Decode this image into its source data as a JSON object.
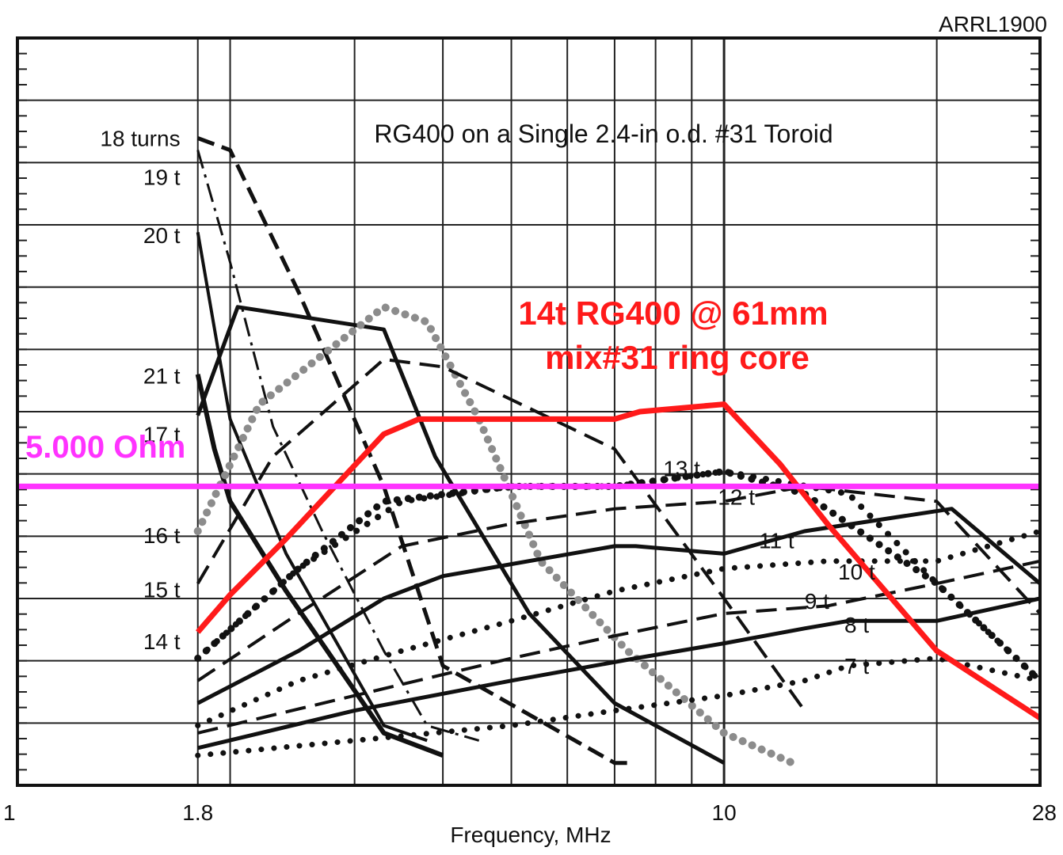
{
  "chart_data": {
    "type": "line",
    "title": "RG400 on a Single 2.4-in o.d. #31 Toroid",
    "corner_label": "ARRL1900",
    "xlabel": "Frequency, MHz",
    "ylabel": "",
    "x_scale": "log",
    "xlim": [
      1,
      28
    ],
    "x_ticks": [
      {
        "value": 1,
        "label": "1"
      },
      {
        "value": 1.8,
        "label": "1.8"
      },
      {
        "value": 10,
        "label": "10"
      },
      {
        "value": 28,
        "label": "28"
      }
    ],
    "y_scale": "log",
    "y_range_note": "y axis unlabelled in original; values below are in relative log-decade units (0 = bottom of plot, 1 = top)",
    "ylim": [
      0,
      1
    ],
    "grid": true,
    "series": [
      {
        "name": "18 turns",
        "style": "dashed-heavy",
        "color": "#111111",
        "width": 5,
        "x": [
          1.8,
          2.0,
          2.5,
          3.3,
          4.0,
          7.0,
          7.3
        ],
        "y": [
          0.866,
          0.85,
          0.66,
          0.4,
          0.16,
          0.03,
          0.03
        ]
      },
      {
        "name": "19 t",
        "style": "dashdot",
        "color": "#111111",
        "width": 3,
        "x": [
          1.8,
          2.0,
          2.3,
          2.7,
          3.3,
          3.8,
          4.5
        ],
        "y": [
          0.85,
          0.7,
          0.48,
          0.34,
          0.18,
          0.08,
          0.06
        ]
      },
      {
        "name": "20 t",
        "style": "solid",
        "color": "#111111",
        "width": 4,
        "x": [
          1.8,
          2.0,
          2.4,
          3.3,
          3.8
        ],
        "y": [
          0.74,
          0.49,
          0.31,
          0.08,
          0.06
        ]
      },
      {
        "name": "21 t",
        "style": "solid",
        "color": "#111111",
        "width": 6,
        "x": [
          1.8,
          1.9,
          2.0,
          2.4,
          3.3,
          4.0
        ],
        "y": [
          0.55,
          0.45,
          0.38,
          0.26,
          0.07,
          0.04
        ]
      },
      {
        "name": "17 t",
        "style": "solid",
        "color": "#111111",
        "width": 5,
        "x": [
          1.8,
          2.05,
          3.3,
          3.9,
          5.3,
          7.0,
          10.0
        ],
        "y": [
          0.495,
          0.64,
          0.61,
          0.44,
          0.23,
          0.11,
          0.03
        ]
      },
      {
        "name": "16 t",
        "style": "dotted-gray",
        "color": "#8c8c8c",
        "width": 10,
        "x": [
          1.8,
          2.2,
          3.3,
          3.8,
          4.5,
          5.5,
          7.3,
          10.0,
          12.5
        ],
        "y": [
          0.34,
          0.51,
          0.64,
          0.62,
          0.49,
          0.3,
          0.18,
          0.07,
          0.03
        ]
      },
      {
        "name": "15 t",
        "style": "dashed",
        "color": "#111111",
        "width": 4,
        "x": [
          1.8,
          2.3,
          3.3,
          4.0,
          7.0,
          10.0,
          13.0
        ],
        "y": [
          0.27,
          0.44,
          0.57,
          0.56,
          0.45,
          0.25,
          0.1
        ]
      },
      {
        "name": "14 t",
        "style": "dotted",
        "color": "#111111",
        "width": 8,
        "x": [
          1.8,
          2.5,
          3.5,
          5.0,
          7.0,
          10.0,
          15.0,
          20.0,
          28.0
        ],
        "y": [
          0.17,
          0.29,
          0.38,
          0.4,
          0.4,
          0.42,
          0.39,
          0.27,
          0.14
        ]
      },
      {
        "name": "13 t",
        "style": "dotted-heavy",
        "color": "#111111",
        "width": 9,
        "x": [
          1.8,
          2.5,
          3.3,
          5.0,
          7.0,
          10.0,
          13.0,
          20.0,
          28.0
        ],
        "y": [
          0.17,
          0.29,
          0.38,
          0.4,
          0.4,
          0.42,
          0.39,
          0.27,
          0.14
        ]
      },
      {
        "name": "12 t",
        "style": "dashed",
        "color": "#111111",
        "width": 4,
        "x": [
          1.8,
          2.5,
          3.5,
          5.0,
          7.0,
          10.0,
          13.0,
          20.0,
          28.0
        ],
        "y": [
          0.14,
          0.23,
          0.32,
          0.35,
          0.37,
          0.38,
          0.4,
          0.38,
          0.23
        ]
      },
      {
        "name": "11 t",
        "style": "solid",
        "color": "#111111",
        "width": 5,
        "x": [
          1.8,
          2.5,
          3.3,
          4.0,
          7.0,
          7.5,
          10.0,
          13.0,
          21.0,
          28.0
        ],
        "y": [
          0.11,
          0.18,
          0.25,
          0.28,
          0.32,
          0.32,
          0.31,
          0.34,
          0.37,
          0.27
        ]
      },
      {
        "name": "10 t",
        "style": "dotted",
        "color": "#111111",
        "width": 7,
        "x": [
          1.8,
          2.5,
          3.5,
          5.0,
          7.0,
          10.0,
          14.0,
          20.0,
          28.0
        ],
        "y": [
          0.08,
          0.14,
          0.18,
          0.22,
          0.26,
          0.29,
          0.3,
          0.3,
          0.34
        ]
      },
      {
        "name": "9 t",
        "style": "dashed",
        "color": "#111111",
        "width": 4,
        "x": [
          1.8,
          3.0,
          5.0,
          7.0,
          10.0,
          14.0,
          20.0,
          28.0
        ],
        "y": [
          0.07,
          0.12,
          0.17,
          0.2,
          0.23,
          0.24,
          0.27,
          0.3
        ]
      },
      {
        "name": "8 t",
        "style": "solid",
        "color": "#111111",
        "width": 5,
        "x": [
          1.8,
          3.0,
          5.0,
          7.5,
          10.0,
          13.0,
          15.0,
          20.0,
          28.0
        ],
        "y": [
          0.05,
          0.1,
          0.14,
          0.17,
          0.19,
          0.21,
          0.22,
          0.22,
          0.25
        ]
      },
      {
        "name": "7 t",
        "style": "dotted",
        "color": "#111111",
        "width": 7,
        "x": [
          1.8,
          3.0,
          5.0,
          7.0,
          10.0,
          13.0,
          15.0,
          20.0,
          28.0
        ],
        "y": [
          0.04,
          0.06,
          0.08,
          0.1,
          0.12,
          0.14,
          0.16,
          0.17,
          0.14
        ]
      },
      {
        "name": "14t RG400 @ 61mm",
        "style": "solid",
        "color": "#ff1a1a",
        "width": 7,
        "x": [
          1.8,
          2.0,
          2.4,
          3.3,
          3.7,
          5.0,
          7.0,
          7.6,
          10.0,
          12.0,
          14.0,
          20.0,
          28.0
        ],
        "y": [
          0.205,
          0.255,
          0.33,
          0.47,
          0.49,
          0.49,
          0.49,
          0.5,
          0.51,
          0.43,
          0.35,
          0.18,
          0.09
        ]
      }
    ],
    "reference_line": {
      "label": "5.000 Ohm",
      "y": 0.4,
      "color": "#ff33ff"
    },
    "annotations": [
      {
        "text": "14t RG400 @ 61mm",
        "color": "#ff1a1a"
      },
      {
        "text": "mix#31 ring core",
        "color": "#ff1a1a"
      }
    ],
    "curve_labels": [
      {
        "text": "18 turns",
        "x": 1.7,
        "y": 0.866
      },
      {
        "text": "19 t",
        "x": 1.7,
        "y": 0.814
      },
      {
        "text": "20 t",
        "x": 1.7,
        "y": 0.736
      },
      {
        "text": "21 t",
        "x": 1.7,
        "y": 0.548
      },
      {
        "text": "17 t",
        "x": 1.7,
        "y": 0.47
      },
      {
        "text": "16 t",
        "x": 1.7,
        "y": 0.335
      },
      {
        "text": "15 t",
        "x": 1.7,
        "y": 0.262
      },
      {
        "text": "14 t",
        "x": 1.7,
        "y": 0.193
      },
      {
        "text": "13 t",
        "x": 8.2,
        "y": 0.424
      },
      {
        "text": "12 t",
        "x": 9.8,
        "y": 0.386
      },
      {
        "text": "11 t",
        "x": 11.2,
        "y": 0.328
      },
      {
        "text": "10 t",
        "x": 14.5,
        "y": 0.286
      },
      {
        "text": "9 t",
        "x": 13.0,
        "y": 0.247
      },
      {
        "text": "8 t",
        "x": 14.8,
        "y": 0.215
      },
      {
        "text": "7 t",
        "x": 14.8,
        "y": 0.16
      }
    ]
  }
}
